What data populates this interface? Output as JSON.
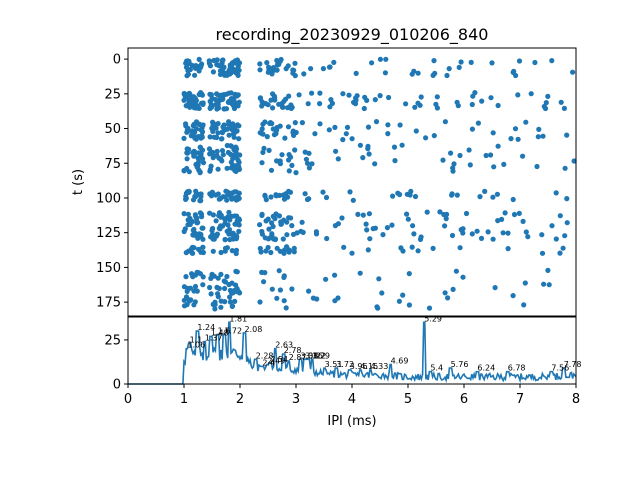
{
  "chart_data": {
    "title": "recording_20230929_010206_840",
    "color": "#1f77b4",
    "panels": [
      {
        "type": "scatter",
        "name": "raster",
        "xlabel": "",
        "ylabel": "t (s)",
        "xlim": [
          0,
          8
        ],
        "ylim": [
          185,
          -8
        ],
        "yticks": [
          0,
          25,
          50,
          75,
          100,
          125,
          150,
          175
        ],
        "bands": [
          {
            "t_min": 0,
            "t_max": 12,
            "density": 1.0
          },
          {
            "t_min": 24,
            "t_max": 36,
            "density": 1.4
          },
          {
            "t_min": 45,
            "t_max": 58,
            "density": 1.0
          },
          {
            "t_min": 62,
            "t_max": 82,
            "density": 1.1
          },
          {
            "t_min": 95,
            "t_max": 102,
            "density": 0.7
          },
          {
            "t_min": 110,
            "t_max": 130,
            "density": 1.5
          },
          {
            "t_min": 135,
            "t_max": 140,
            "density": 0.4
          },
          {
            "t_min": 152,
            "t_max": 180,
            "density": 0.9
          }
        ],
        "x_clusters": [
          {
            "x_min": 1.0,
            "x_max": 1.35,
            "weight": 3
          },
          {
            "x_min": 1.45,
            "x_max": 2.0,
            "weight": 4
          },
          {
            "x_min": 2.35,
            "x_max": 2.9,
            "weight": 2
          },
          {
            "x_min": 2.9,
            "x_max": 8.0,
            "weight": 4
          }
        ]
      },
      {
        "type": "line",
        "name": "histogram",
        "xlabel": "IPI (ms)",
        "ylabel": "",
        "xlim": [
          0,
          8
        ],
        "ylim": [
          0,
          38
        ],
        "xticks": [
          0,
          1,
          2,
          3,
          4,
          5,
          6,
          7,
          8
        ],
        "yticks": [
          0,
          25
        ],
        "peaks": [
          {
            "x": 1.06,
            "y": 20,
            "label": "1.06"
          },
          {
            "x": 1.1,
            "y": 23,
            "label": "1.1"
          },
          {
            "x": 1.24,
            "y": 30,
            "label": "1.24"
          },
          {
            "x": 1.37,
            "y": 24,
            "label": "1.37"
          },
          {
            "x": 1.48,
            "y": 27,
            "label": "1.48"
          },
          {
            "x": 1.6,
            "y": 28,
            "label": "1.6"
          },
          {
            "x": 1.72,
            "y": 28,
            "label": "1.72"
          },
          {
            "x": 1.81,
            "y": 35,
            "label": "1.81"
          },
          {
            "x": 2.08,
            "y": 29,
            "label": "2.08"
          },
          {
            "x": 2.28,
            "y": 14,
            "label": "2.28"
          },
          {
            "x": 2.4,
            "y": 10,
            "label": "2.4"
          },
          {
            "x": 2.49,
            "y": 11,
            "label": "2.49"
          },
          {
            "x": 2.54,
            "y": 12,
            "label": "2.54"
          },
          {
            "x": 2.63,
            "y": 20,
            "label": "2.63"
          },
          {
            "x": 2.78,
            "y": 17,
            "label": "2.78"
          },
          {
            "x": 2.87,
            "y": 13,
            "label": "2.87"
          },
          {
            "x": 3.08,
            "y": 14,
            "label": "3.08"
          },
          {
            "x": 3.16,
            "y": 14,
            "label": "3.16"
          },
          {
            "x": 3.22,
            "y": 14,
            "label": "3.22"
          },
          {
            "x": 3.29,
            "y": 14,
            "label": "3.29"
          },
          {
            "x": 3.51,
            "y": 9,
            "label": "3.51"
          },
          {
            "x": 3.72,
            "y": 9,
            "label": "3.72"
          },
          {
            "x": 3.96,
            "y": 8,
            "label": "3.96"
          },
          {
            "x": 4.15,
            "y": 8,
            "label": "4.15"
          },
          {
            "x": 4.33,
            "y": 8,
            "label": "4.33"
          },
          {
            "x": 4.69,
            "y": 11,
            "label": "4.69"
          },
          {
            "x": 5.29,
            "y": 35,
            "label": "5.29"
          },
          {
            "x": 5.4,
            "y": 7,
            "label": "5.4"
          },
          {
            "x": 5.76,
            "y": 9,
            "label": "5.76"
          },
          {
            "x": 6.24,
            "y": 7,
            "label": "6.24"
          },
          {
            "x": 6.78,
            "y": 7,
            "label": "6.78"
          },
          {
            "x": 7.56,
            "y": 7,
            "label": "7.56"
          },
          {
            "x": 7.78,
            "y": 9,
            "label": "7.78"
          }
        ],
        "baseline_points": [
          [
            0,
            0
          ],
          [
            0.99,
            0
          ],
          [
            1.0,
            15
          ],
          [
            1.5,
            18
          ],
          [
            2.0,
            17
          ],
          [
            2.2,
            10
          ],
          [
            2.5,
            8
          ],
          [
            3.0,
            8
          ],
          [
            3.5,
            6
          ],
          [
            4.0,
            5
          ],
          [
            4.5,
            5
          ],
          [
            5.0,
            4
          ],
          [
            5.5,
            4
          ],
          [
            6.0,
            4
          ],
          [
            6.5,
            4
          ],
          [
            7.0,
            4
          ],
          [
            7.5,
            4
          ],
          [
            8.0,
            5
          ]
        ]
      }
    ]
  }
}
